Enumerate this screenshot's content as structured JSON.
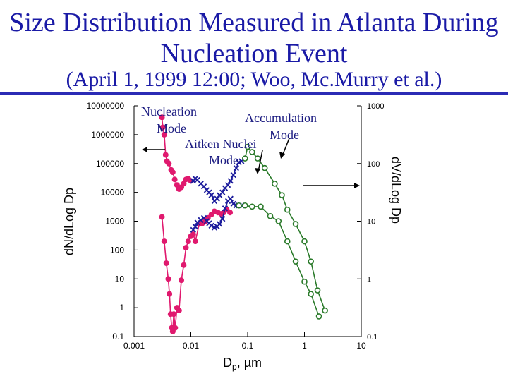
{
  "title_line1": "Size Distribution Measured in Atlanta During",
  "title_line2": "Nucleation Event",
  "subtitle": "(April 1, 1999 12:00; Woo, Mc.Murry et al.)",
  "colors": {
    "title": "#1a1aa6",
    "pink": "#e0196e",
    "blue": "#1c1c9c",
    "green": "#2a7a2a"
  },
  "chart_data": {
    "type": "line",
    "xlabel": "Dp, µm",
    "xlabel_main": "D",
    "xlabel_sub": "p",
    "xlabel_rest": ",  µm",
    "ylabel_left": "dN/dLog Dp",
    "ylabel_right": "dV/dLog Dp",
    "x_scale": "log",
    "xlim": [
      0.001,
      10
    ],
    "ylim_left": [
      0.1,
      10000000
    ],
    "ylim_right": [
      0.1,
      1000
    ],
    "x_ticks": [
      "0.001",
      "0.01",
      "0.1",
      "1",
      "10"
    ],
    "y_left_ticks": [
      "0.1",
      "1",
      "10",
      "100",
      "1000",
      "10000",
      "100000",
      "1000000",
      "10000000"
    ],
    "y_right_ticks": [
      "0.1",
      "1",
      "10",
      "100",
      "1000"
    ],
    "annotations": [
      {
        "lines": [
          "Nucleation",
          "Mode"
        ]
      },
      {
        "lines": [
          "Aitken Nuclei",
          "Mode"
        ]
      },
      {
        "lines": [
          "Accumulation",
          "Mode"
        ]
      }
    ],
    "series": [
      {
        "axis": "left",
        "marker": "dot",
        "color": "#e0196e",
        "points": [
          [
            0.0031,
            4000000
          ],
          [
            0.0032,
            1800000
          ],
          [
            0.0034,
            1000000
          ],
          [
            0.0036,
            200000
          ],
          [
            0.0038,
            120000
          ],
          [
            0.0041,
            100000
          ],
          [
            0.0045,
            60000
          ],
          [
            0.0048,
            50000
          ],
          [
            0.0052,
            28000
          ],
          [
            0.0057,
            18000
          ],
          [
            0.0062,
            13000
          ],
          [
            0.0068,
            15000
          ],
          [
            0.0075,
            20000
          ],
          [
            0.0082,
            28000
          ],
          [
            0.009,
            30000
          ],
          [
            0.01,
            25000
          ]
        ]
      },
      {
        "axis": "left",
        "marker": "dot",
        "color": "#e0196e",
        "points": [
          [
            0.0031,
            1400
          ],
          [
            0.0034,
            200
          ],
          [
            0.0037,
            35
          ],
          [
            0.004,
            10
          ],
          [
            0.0042,
            3
          ],
          [
            0.0044,
            0.6
          ],
          [
            0.0046,
            0.2
          ],
          [
            0.0048,
            0.15
          ],
          [
            0.005,
            0.6
          ],
          [
            0.0053,
            0.2
          ],
          [
            0.0057,
            1
          ],
          [
            0.0062,
            0.8
          ],
          [
            0.0068,
            9
          ],
          [
            0.0075,
            30
          ],
          [
            0.0082,
            120
          ],
          [
            0.009,
            200
          ],
          [
            0.01,
            300
          ],
          [
            0.011,
            350
          ],
          [
            0.012,
            200
          ],
          [
            0.014,
            800
          ],
          [
            0.016,
            850
          ],
          [
            0.018,
            1000
          ],
          [
            0.02,
            1300
          ],
          [
            0.023,
            1700
          ],
          [
            0.026,
            2200
          ],
          [
            0.03,
            2000
          ],
          [
            0.034,
            1800
          ],
          [
            0.038,
            2000
          ],
          [
            0.043,
            2500
          ],
          [
            0.049,
            2000
          ]
        ]
      },
      {
        "axis": "left",
        "marker": "x",
        "color": "#1c1c9c",
        "points": [
          [
            0.011,
            25000
          ],
          [
            0.012,
            30000
          ],
          [
            0.013,
            27000
          ],
          [
            0.015,
            20000
          ],
          [
            0.017,
            16000
          ],
          [
            0.019,
            12000
          ],
          [
            0.021,
            10000
          ],
          [
            0.023,
            8000
          ],
          [
            0.026,
            5000
          ],
          [
            0.029,
            6000
          ],
          [
            0.032,
            8000
          ],
          [
            0.036,
            10000
          ],
          [
            0.04,
            14000
          ],
          [
            0.045,
            18000
          ],
          [
            0.05,
            25000
          ],
          [
            0.056,
            40000
          ],
          [
            0.063,
            70000
          ],
          [
            0.07,
            110000
          ],
          [
            0.078,
            120000
          ]
        ]
      },
      {
        "axis": "left",
        "marker": "x",
        "color": "#1c1c9c",
        "points": [
          [
            0.011,
            500
          ],
          [
            0.012,
            650
          ],
          [
            0.013,
            900
          ],
          [
            0.015,
            1100
          ],
          [
            0.017,
            1300
          ],
          [
            0.019,
            1000
          ],
          [
            0.021,
            850
          ],
          [
            0.023,
            700
          ],
          [
            0.026,
            600
          ],
          [
            0.029,
            650
          ],
          [
            0.032,
            800
          ],
          [
            0.036,
            1200
          ],
          [
            0.04,
            2800
          ],
          [
            0.045,
            5000
          ],
          [
            0.05,
            6000
          ],
          [
            0.056,
            4000
          ],
          [
            0.063,
            3500
          ],
          [
            0.07,
            3500
          ],
          [
            0.078,
            3500
          ]
        ]
      },
      {
        "axis": "left",
        "marker": "circle",
        "color": "#2a7a2a",
        "points": [
          [
            0.09,
            150000
          ],
          [
            0.1,
            380000
          ],
          [
            0.12,
            250000
          ],
          [
            0.15,
            150000
          ],
          [
            0.2,
            70000
          ],
          [
            0.3,
            20000
          ],
          [
            0.4,
            8000
          ],
          [
            0.5,
            2500
          ],
          [
            0.7,
            800
          ],
          [
            1.0,
            200
          ],
          [
            1.3,
            40
          ],
          [
            1.7,
            4
          ],
          [
            2.3,
            0.8
          ]
        ]
      },
      {
        "axis": "left",
        "marker": "circle",
        "color": "#2a7a2a",
        "points": [
          [
            0.07,
            3500
          ],
          [
            0.09,
            3500
          ],
          [
            0.12,
            3200
          ],
          [
            0.17,
            3200
          ],
          [
            0.25,
            1500
          ],
          [
            0.35,
            1000
          ],
          [
            0.5,
            200
          ],
          [
            0.7,
            40
          ],
          [
            1.0,
            8
          ],
          [
            1.3,
            3
          ],
          [
            1.8,
            0.5
          ]
        ]
      }
    ]
  }
}
